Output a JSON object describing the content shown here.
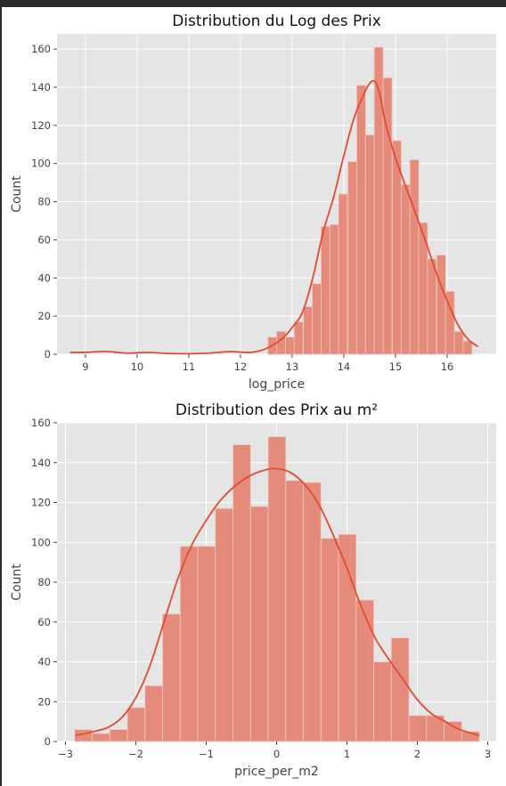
{
  "colors": {
    "panel_bg": "#e5e5e5",
    "grid": "#ffffff",
    "bar_fill": "#e48b7b",
    "bar_edge": "#f3c9c1",
    "kde_line": "#e24a33",
    "tick_text": "#444444"
  },
  "chart_data": [
    {
      "type": "bar",
      "title": "Distribution du Log des Prix",
      "xlabel": "log_price",
      "ylabel": "Count",
      "xlim": [
        8.45,
        16.95
      ],
      "ylim": [
        0,
        168
      ],
      "xticks": [
        9,
        10,
        11,
        12,
        13,
        14,
        15,
        16
      ],
      "yticks": [
        0,
        20,
        40,
        60,
        80,
        100,
        120,
        140,
        160
      ],
      "grid": true,
      "series": [
        {
          "kind": "histogram",
          "bin_width": 0.1723,
          "bins_start": [
            12.53,
            12.7,
            12.87,
            13.04,
            13.22,
            13.39,
            13.56,
            13.73,
            13.9,
            14.08,
            14.25,
            14.42,
            14.59,
            14.76,
            14.94,
            15.11,
            15.28,
            15.45,
            15.62,
            15.8,
            15.97,
            16.14,
            16.31
          ],
          "counts": [
            9,
            12,
            9,
            17,
            25,
            37,
            67,
            68,
            84,
            101,
            141,
            115,
            161,
            145,
            112,
            89,
            102,
            69,
            50,
            52,
            33,
            12,
            7
          ]
        },
        {
          "kind": "kde",
          "x": [
            8.7,
            9.0,
            9.4,
            9.8,
            10.2,
            10.6,
            11.0,
            11.4,
            11.8,
            12.2,
            12.5,
            12.8,
            13.0,
            13.2,
            13.4,
            13.6,
            13.8,
            14.0,
            14.2,
            14.4,
            14.5,
            14.6,
            14.7,
            14.8,
            15.0,
            15.2,
            15.4,
            15.6,
            15.8,
            16.0,
            16.2,
            16.4,
            16.6
          ],
          "y": [
            1,
            1,
            1.5,
            0.6,
            1,
            0.4,
            0.3,
            0.6,
            1.4,
            1,
            3,
            8,
            14,
            22,
            40,
            64,
            82,
            104,
            124,
            137,
            142,
            143,
            136,
            122,
            103,
            88,
            73,
            58,
            42,
            28,
            16,
            8,
            4
          ]
        }
      ]
    },
    {
      "type": "bar",
      "title": "Distribution des Prix au m²",
      "xlabel": "price_per_m2",
      "ylabel": "Count",
      "xlim": [
        -3.12,
        3.12
      ],
      "ylim": [
        0,
        160
      ],
      "xticks": [
        -3,
        -2,
        -1,
        0,
        1,
        2,
        3
      ],
      "xtick_labels": [
        "−3",
        "−2",
        "−1",
        "0",
        "1",
        "2",
        "3"
      ],
      "yticks": [
        0,
        20,
        40,
        60,
        80,
        100,
        120,
        140,
        160
      ],
      "grid": true,
      "series": [
        {
          "kind": "histogram",
          "bin_width": 0.25,
          "bins_start": [
            -2.87,
            -2.62,
            -2.37,
            -2.12,
            -1.87,
            -1.62,
            -1.37,
            -1.12,
            -0.87,
            -0.62,
            -0.37,
            -0.12,
            0.13,
            0.38,
            0.63,
            0.88,
            1.13,
            1.38,
            1.63,
            1.88,
            2.13,
            2.38,
            2.63
          ],
          "counts": [
            6,
            4,
            6,
            17,
            28,
            64,
            98,
            98,
            117,
            149,
            118,
            153,
            131,
            130,
            102,
            104,
            71,
            40,
            52,
            13,
            13,
            10,
            5
          ]
        },
        {
          "kind": "kde",
          "x": [
            -2.85,
            -2.6,
            -2.4,
            -2.2,
            -2.0,
            -1.8,
            -1.6,
            -1.4,
            -1.2,
            -1.0,
            -0.8,
            -0.6,
            -0.4,
            -0.2,
            0.0,
            0.2,
            0.4,
            0.6,
            0.8,
            1.0,
            1.2,
            1.4,
            1.6,
            1.8,
            2.0,
            2.2,
            2.4,
            2.6,
            2.88
          ],
          "y": [
            3,
            5,
            7,
            12,
            22,
            38,
            60,
            82,
            99,
            111,
            121,
            128,
            133,
            136,
            137,
            135,
            129,
            119,
            104,
            87,
            68,
            52,
            41,
            31,
            21,
            14,
            10,
            6,
            3
          ]
        }
      ]
    }
  ]
}
